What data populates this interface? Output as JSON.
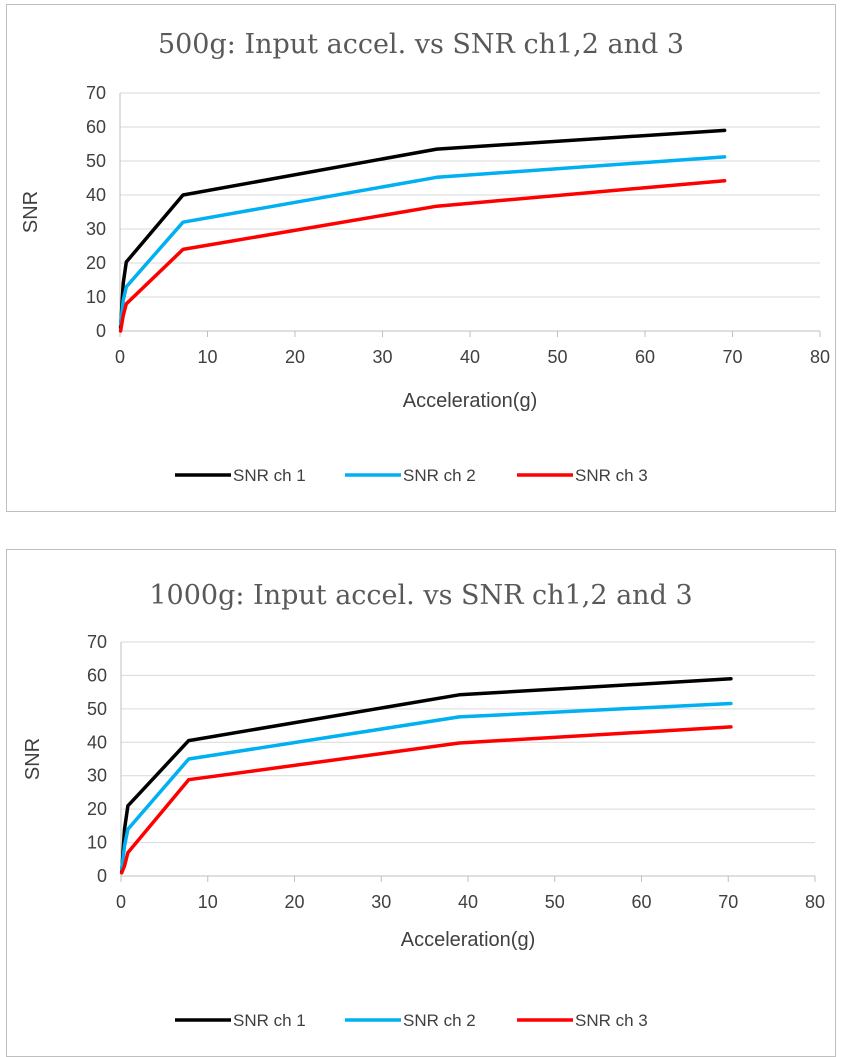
{
  "chart_data": [
    {
      "type": "line",
      "title": "500g: Input accel. vs SNR ch1,2 and 3",
      "xlabel": "Acceleration(g)",
      "ylabel": "SNR",
      "xlim": [
        0,
        80
      ],
      "ylim": [
        0,
        70
      ],
      "xticks": [
        "0",
        "10",
        "20",
        "30",
        "40",
        "50",
        "60",
        "70",
        "80"
      ],
      "yticks": [
        "0",
        "10",
        "20",
        "30",
        "40",
        "50",
        "60",
        "70"
      ],
      "grid": "horizontal",
      "legend": "bottom",
      "series": [
        {
          "name": "SNR ch 1",
          "color": "#000000",
          "x": [
            0.07,
            0.36,
            0.72,
            7.2,
            36.2,
            69.1
          ],
          "y": [
            1,
            14,
            20.3,
            40,
            53.5,
            59
          ]
        },
        {
          "name": "SNR ch 2",
          "color": "#00b0f0",
          "x": [
            0.07,
            0.36,
            0.72,
            7.2,
            36.2,
            69.1
          ],
          "y": [
            2,
            9,
            13,
            32,
            45.2,
            51.2
          ]
        },
        {
          "name": "SNR ch 3",
          "color": "#ff0000",
          "x": [
            0.07,
            0.36,
            0.72,
            7.2,
            36.2,
            69.1
          ],
          "y": [
            0,
            4.5,
            8,
            24,
            36.7,
            44.2
          ]
        }
      ]
    },
    {
      "type": "line",
      "title": "1000g: Input accel. vs SNR ch1,2 and 3",
      "xlabel": "Acceleration(g)",
      "ylabel": "SNR",
      "xlim": [
        0,
        80
      ],
      "ylim": [
        0,
        70
      ],
      "xticks": [
        "0",
        "10",
        "20",
        "30",
        "40",
        "50",
        "60",
        "70",
        "80"
      ],
      "yticks": [
        "0",
        "10",
        "20",
        "30",
        "40",
        "50",
        "60",
        "70"
      ],
      "grid": "horizontal",
      "legend": "bottom",
      "series": [
        {
          "name": "SNR ch 1",
          "color": "#000000",
          "x": [
            0.08,
            0.4,
            0.8,
            7.8,
            39,
            70.3
          ],
          "y": [
            1,
            14,
            21,
            40.5,
            54.2,
            59
          ]
        },
        {
          "name": "SNR ch 2",
          "color": "#00b0f0",
          "x": [
            0.08,
            0.4,
            0.8,
            7.8,
            39,
            70.3
          ],
          "y": [
            2,
            9,
            14,
            35,
            47.6,
            51.6
          ]
        },
        {
          "name": "SNR ch 3",
          "color": "#ff0000",
          "x": [
            0.08,
            0.4,
            0.8,
            7.8,
            39,
            70.3
          ],
          "y": [
            1,
            3,
            7,
            28.8,
            39.8,
            44.6
          ]
        }
      ]
    }
  ]
}
